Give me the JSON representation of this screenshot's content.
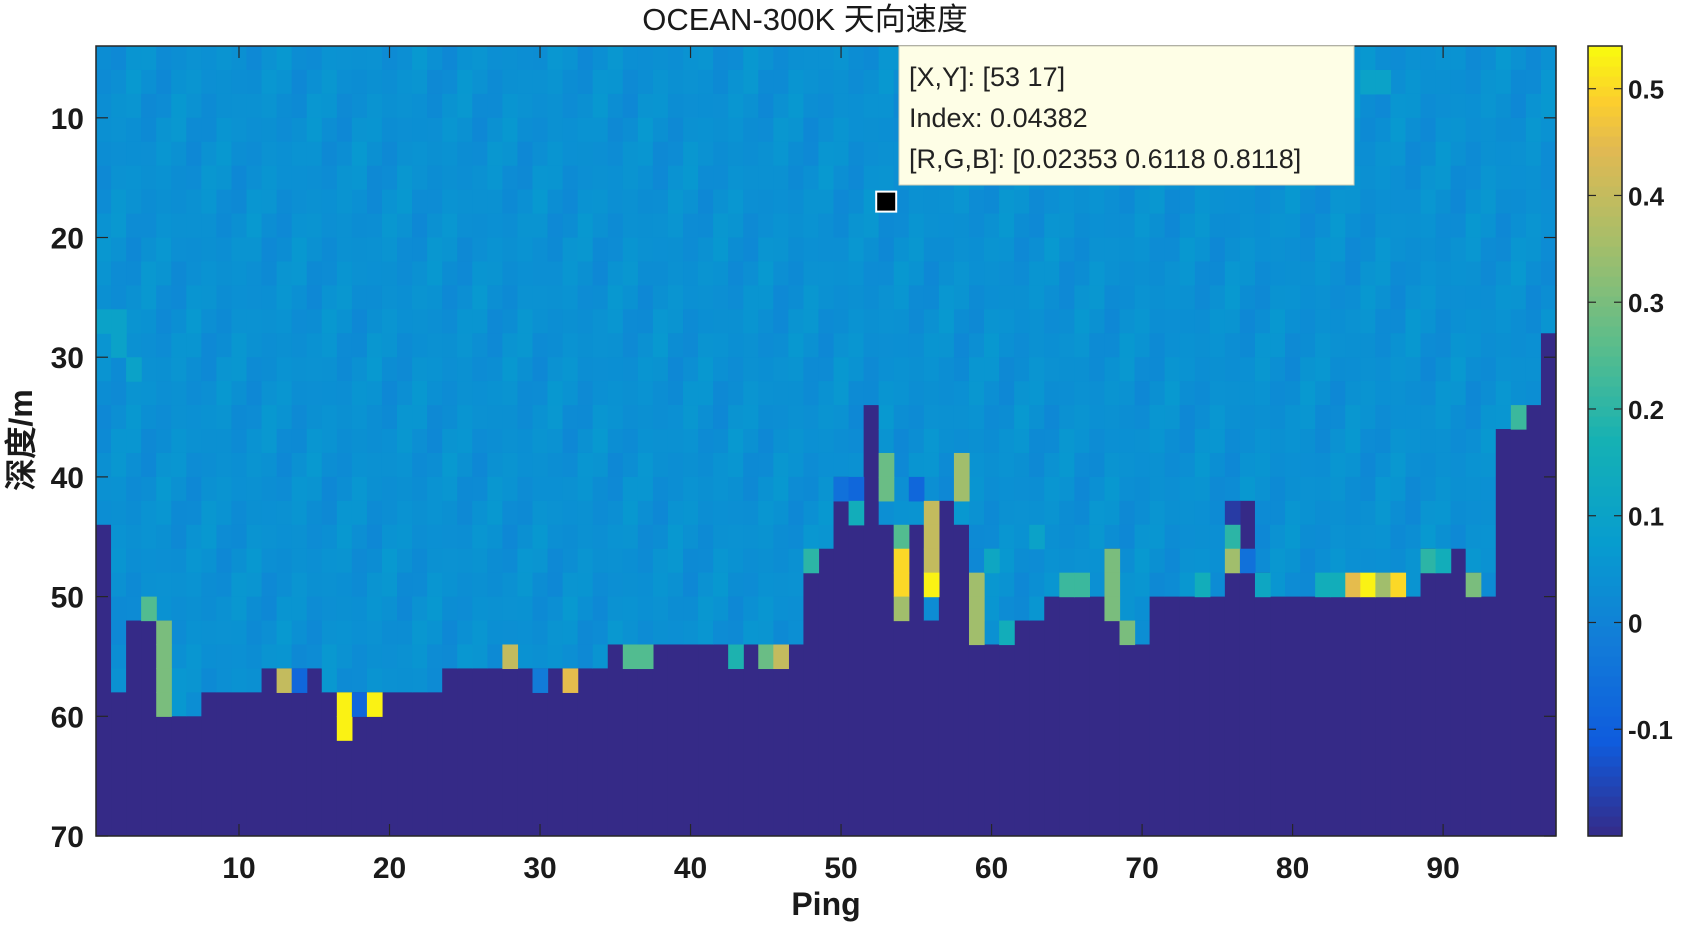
{
  "chart_data": {
    "type": "heatmap",
    "title": "OCEAN-300K 天向速度",
    "xlabel": "Ping",
    "ylabel": "深度/m",
    "x_range": [
      1,
      97
    ],
    "y_range": [
      4,
      70
    ],
    "y_reversed": true,
    "cell_depth_m": 2,
    "x_ticks": [
      10,
      20,
      30,
      40,
      50,
      60,
      70,
      80,
      90
    ],
    "y_ticks": [
      10,
      20,
      30,
      40,
      50,
      60,
      70
    ],
    "colormap": "parula",
    "colorbar": {
      "range": [
        -0.2,
        0.54
      ],
      "ticks": [
        -0.1,
        0,
        0.1,
        0.2,
        0.3,
        0.4,
        0.5
      ],
      "tick_labels": [
        "-0.1",
        "0",
        "0.1",
        "0.2",
        "0.3",
        "0.4",
        "0.5"
      ]
    },
    "background_value": 0.04,
    "no_data_value": -0.2,
    "bottom_depth_by_ping": [
      44,
      58,
      52,
      52,
      52,
      60,
      60,
      58,
      58,
      58,
      58,
      56,
      56,
      56,
      56,
      58,
      58,
      58,
      58,
      58,
      58,
      58,
      58,
      56,
      56,
      56,
      56,
      56,
      56,
      56,
      56,
      56,
      56,
      56,
      54,
      54,
      54,
      54,
      54,
      54,
      54,
      54,
      54,
      54,
      54,
      54,
      54,
      48,
      46,
      40,
      42,
      34,
      44,
      46,
      44,
      52,
      42,
      44,
      54,
      54,
      54,
      52,
      52,
      50,
      50,
      50,
      50,
      46,
      52,
      54,
      50,
      50,
      50,
      50,
      50,
      48,
      42,
      48,
      50,
      50,
      50,
      50,
      50,
      50,
      50,
      50,
      50,
      50,
      46,
      48,
      46,
      48,
      50,
      36,
      36,
      34,
      28
    ],
    "highlight_cells": [
      {
        "x": 4,
        "y": 50,
        "value": 0.25
      },
      {
        "x": 5,
        "y": 52,
        "value": 0.3
      },
      {
        "x": 5,
        "y": 54,
        "value": 0.3
      },
      {
        "x": 5,
        "y": 56,
        "value": 0.3
      },
      {
        "x": 5,
        "y": 58,
        "value": 0.3
      },
      {
        "x": 13,
        "y": 56,
        "value": 0.4
      },
      {
        "x": 14,
        "y": 56,
        "value": -0.08
      },
      {
        "x": 17,
        "y": 58,
        "value": 0.53
      },
      {
        "x": 17,
        "y": 60,
        "value": 0.53
      },
      {
        "x": 18,
        "y": 58,
        "value": -0.08
      },
      {
        "x": 19,
        "y": 58,
        "value": 0.53
      },
      {
        "x": 28,
        "y": 54,
        "value": 0.4
      },
      {
        "x": 30,
        "y": 56,
        "value": -0.02
      },
      {
        "x": 32,
        "y": 56,
        "value": 0.45
      },
      {
        "x": 36,
        "y": 54,
        "value": 0.25
      },
      {
        "x": 37,
        "y": 54,
        "value": 0.25
      },
      {
        "x": 43,
        "y": 54,
        "value": 0.18
      },
      {
        "x": 45,
        "y": 54,
        "value": 0.28
      },
      {
        "x": 46,
        "y": 54,
        "value": 0.4
      },
      {
        "x": 48,
        "y": 46,
        "value": 0.2
      },
      {
        "x": 50,
        "y": 40,
        "value": -0.05
      },
      {
        "x": 51,
        "y": 40,
        "value": -0.08
      },
      {
        "x": 51,
        "y": 42,
        "value": 0.15
      },
      {
        "x": 53,
        "y": 38,
        "value": 0.28
      },
      {
        "x": 53,
        "y": 40,
        "value": 0.28
      },
      {
        "x": 54,
        "y": 44,
        "value": 0.25
      },
      {
        "x": 54,
        "y": 46,
        "value": 0.5
      },
      {
        "x": 54,
        "y": 48,
        "value": 0.5
      },
      {
        "x": 54,
        "y": 50,
        "value": 0.35
      },
      {
        "x": 55,
        "y": 40,
        "value": -0.08
      },
      {
        "x": 56,
        "y": 42,
        "value": 0.4
      },
      {
        "x": 56,
        "y": 44,
        "value": 0.4
      },
      {
        "x": 56,
        "y": 46,
        "value": 0.4
      },
      {
        "x": 56,
        "y": 48,
        "value": 0.53
      },
      {
        "x": 58,
        "y": 38,
        "value": 0.35
      },
      {
        "x": 58,
        "y": 40,
        "value": 0.35
      },
      {
        "x": 59,
        "y": 48,
        "value": 0.35
      },
      {
        "x": 59,
        "y": 50,
        "value": 0.35
      },
      {
        "x": 59,
        "y": 52,
        "value": 0.35
      },
      {
        "x": 61,
        "y": 52,
        "value": 0.15
      },
      {
        "x": 65,
        "y": 48,
        "value": 0.22
      },
      {
        "x": 66,
        "y": 48,
        "value": 0.22
      },
      {
        "x": 68,
        "y": 46,
        "value": 0.3
      },
      {
        "x": 68,
        "y": 48,
        "value": 0.3
      },
      {
        "x": 68,
        "y": 50,
        "value": 0.3
      },
      {
        "x": 69,
        "y": 52,
        "value": 0.3
      },
      {
        "x": 74,
        "y": 48,
        "value": 0.15
      },
      {
        "x": 76,
        "y": 42,
        "value": -0.17
      },
      {
        "x": 76,
        "y": 44,
        "value": 0.2
      },
      {
        "x": 76,
        "y": 46,
        "value": 0.35
      },
      {
        "x": 77,
        "y": 46,
        "value": -0.05
      },
      {
        "x": 78,
        "y": 48,
        "value": 0.12
      },
      {
        "x": 82,
        "y": 48,
        "value": 0.15
      },
      {
        "x": 83,
        "y": 48,
        "value": 0.15
      },
      {
        "x": 84,
        "y": 48,
        "value": 0.45
      },
      {
        "x": 85,
        "y": 48,
        "value": 0.53
      },
      {
        "x": 86,
        "y": 48,
        "value": 0.35
      },
      {
        "x": 87,
        "y": 48,
        "value": 0.5
      },
      {
        "x": 89,
        "y": 46,
        "value": 0.2
      },
      {
        "x": 90,
        "y": 46,
        "value": 0.15
      },
      {
        "x": 92,
        "y": 48,
        "value": 0.3
      },
      {
        "x": 95,
        "y": 34,
        "value": 0.22
      },
      {
        "x": 1,
        "y": 26,
        "value": 0.1
      },
      {
        "x": 2,
        "y": 26,
        "value": 0.1
      },
      {
        "x": 2,
        "y": 28,
        "value": 0.1
      },
      {
        "x": 3,
        "y": 30,
        "value": 0.1
      },
      {
        "x": 60,
        "y": 46,
        "value": 0.12
      },
      {
        "x": 63,
        "y": 44,
        "value": 0.1
      },
      {
        "x": 85,
        "y": 6,
        "value": 0.1
      },
      {
        "x": 86,
        "y": 6,
        "value": 0.1
      }
    ],
    "datatip": {
      "x": 53,
      "y": 17,
      "line1": "[X,Y]: [53 17]",
      "line2": "Index: 0.04382",
      "line3": "[R,G,B]: [0.02353 0.6118 0.8118]"
    }
  }
}
